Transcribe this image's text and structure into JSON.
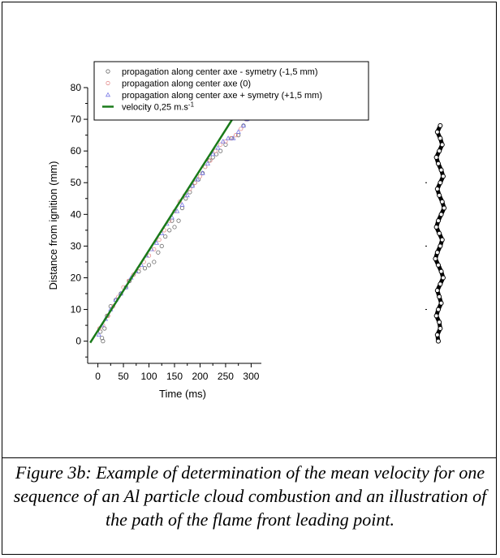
{
  "chart_data": {
    "type": "scatter",
    "xlabel": "Time (ms)",
    "ylabel": "Distance from ignition (mm)",
    "xlim": [
      -20,
      320
    ],
    "ylim": [
      -7,
      80
    ],
    "xticks": [
      0,
      50,
      100,
      150,
      200,
      250,
      300
    ],
    "yticks": [
      0,
      10,
      20,
      30,
      40,
      50,
      60,
      70,
      80
    ],
    "legend_position": "top",
    "series": [
      {
        "name": "propagation along center axe - symetry (-1,5  mm)",
        "marker": "circle",
        "color": "#6a6a6a",
        "x": [
          5,
          8,
          10,
          13,
          18,
          25,
          35,
          45,
          55,
          62,
          70,
          80,
          92,
          100,
          110,
          118,
          125,
          132,
          140,
          145,
          150,
          158,
          165,
          172,
          180,
          185,
          190,
          197,
          205,
          210,
          218,
          225,
          232,
          240,
          250,
          262,
          275,
          285,
          292
        ],
        "y": [
          3,
          1,
          0,
          4,
          8,
          11,
          13,
          15,
          17,
          19,
          21,
          22,
          23,
          24,
          25,
          28,
          30,
          33,
          35,
          38,
          36,
          38,
          42,
          45,
          47,
          49,
          50,
          51,
          53,
          55,
          57,
          58,
          59,
          60,
          62,
          64,
          65,
          68,
          70
        ]
      },
      {
        "name": "propagation along center axe (0)",
        "marker": "circle",
        "color": "#e58f8f",
        "x": [
          3,
          10,
          20,
          30,
          40,
          50,
          60,
          70,
          80,
          90,
          100,
          110,
          120,
          130,
          140,
          150,
          160,
          170,
          180,
          190,
          200,
          210,
          220,
          230,
          240,
          250,
          260,
          270,
          280,
          290
        ],
        "y": [
          4,
          5,
          8,
          11,
          14,
          17,
          19,
          21,
          23,
          25,
          27,
          29,
          32,
          35,
          38,
          41,
          44,
          46,
          48,
          50,
          52,
          55,
          57,
          60,
          62,
          63,
          64,
          65,
          67,
          70
        ]
      },
      {
        "name": "propagation along center axe + symetry (+1,5 mm)",
        "marker": "triangle",
        "color": "#7a7ae6",
        "x": [
          2,
          8,
          15,
          25,
          35,
          45,
          55,
          65,
          75,
          85,
          95,
          105,
          115,
          125,
          135,
          145,
          155,
          165,
          175,
          185,
          195,
          205,
          215,
          225,
          235,
          245,
          255,
          265,
          275,
          285,
          292
        ],
        "y": [
          2,
          5,
          7,
          10,
          13,
          15,
          17,
          20,
          22,
          24,
          27,
          29,
          31,
          34,
          37,
          39,
          41,
          43,
          46,
          49,
          51,
          53,
          56,
          59,
          61,
          63,
          64,
          64,
          66,
          68,
          70
        ]
      }
    ],
    "fit_line": {
      "name": "velocity 0,25 m.s",
      "superscript": "-1",
      "color": "#1a7a1a",
      "x": [
        -15,
        275
      ],
      "y": [
        -0.5,
        73
      ]
    },
    "inset_path": {
      "color": "#000000",
      "x_offset": [
        2,
        -1,
        2,
        4,
        1,
        -2,
        0,
        3,
        5,
        2,
        -1,
        1,
        4,
        6,
        3,
        0,
        -2,
        1,
        4,
        2,
        -1,
        -3,
        0,
        3,
        5,
        2,
        -1,
        1,
        3,
        0,
        -2,
        1,
        2,
        -1,
        0
      ],
      "y": [
        68,
        66,
        64,
        62,
        60,
        58,
        56,
        54,
        52,
        50,
        48,
        46,
        44,
        42,
        40,
        38,
        36,
        34,
        32,
        30,
        28,
        26,
        24,
        22,
        20,
        18,
        16,
        14,
        12,
        10,
        8,
        6,
        4,
        2,
        0
      ]
    }
  },
  "caption": "Figure 3b: Example of determination of the mean velocity for one sequence of an Al particle cloud combustion and an illustration of the path of the flame front leading point."
}
